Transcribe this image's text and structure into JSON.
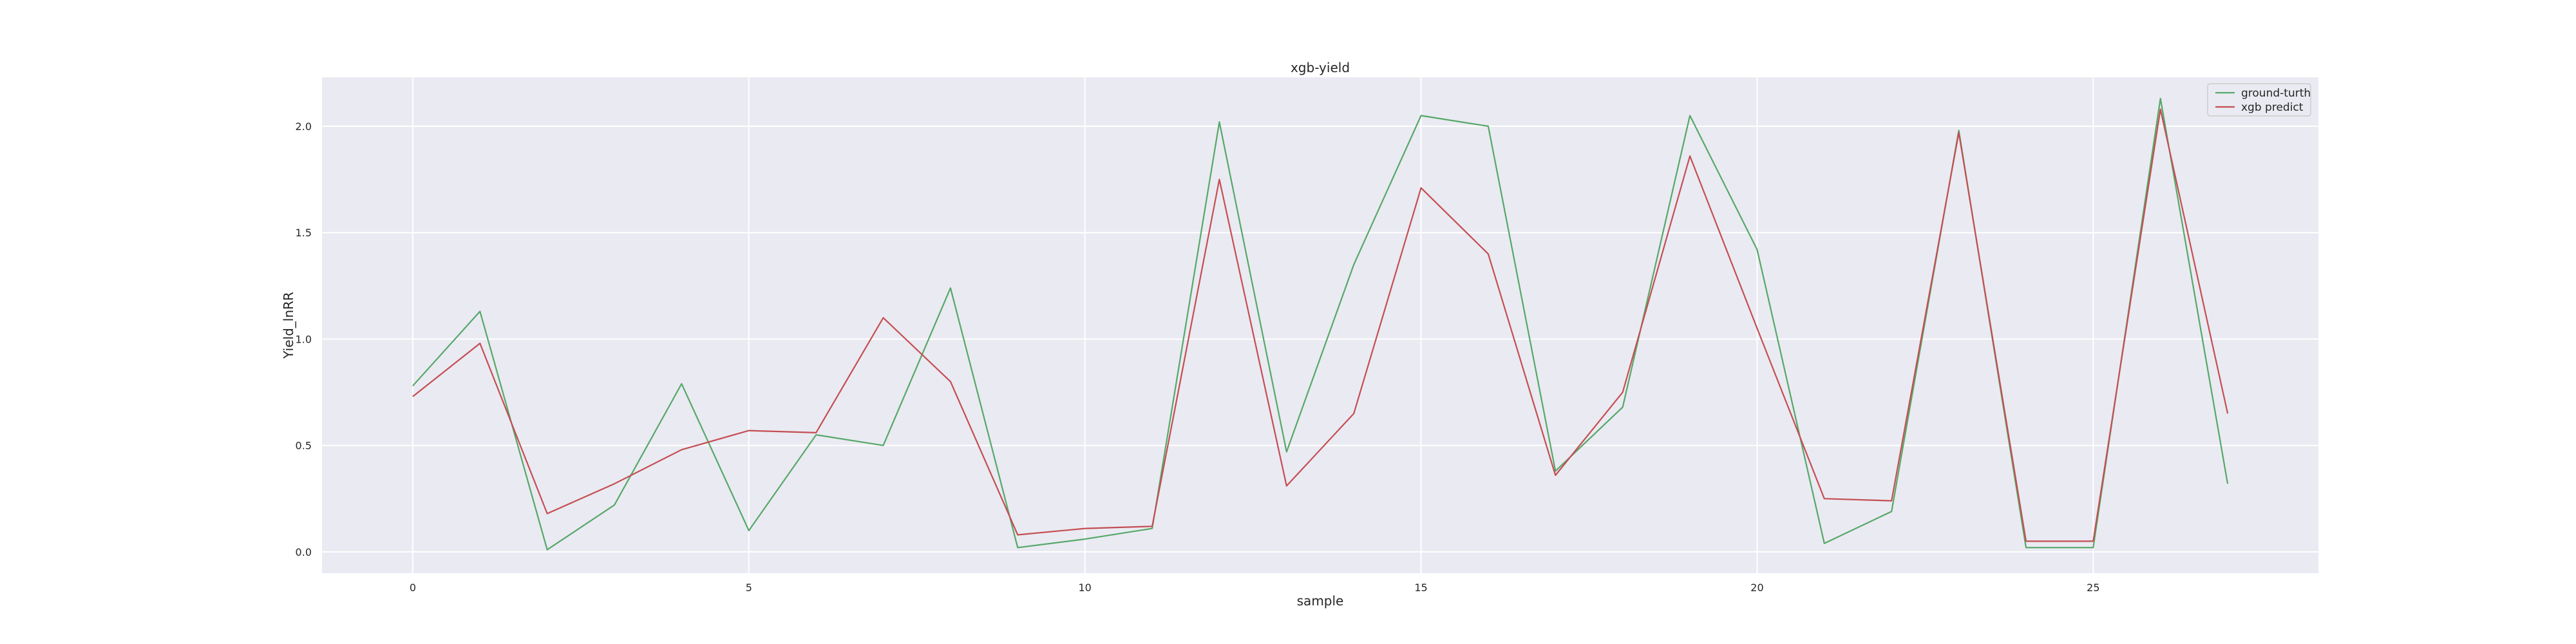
{
  "chart_data": {
    "type": "line",
    "title": "xgb-yield",
    "xlabel": "sample",
    "ylabel": "Yield_lnRR",
    "xlim": [
      -1.35,
      28.35
    ],
    "ylim": [
      -0.1,
      2.23
    ],
    "xticks": [
      0,
      5,
      10,
      15,
      20,
      25
    ],
    "yticks": [
      0.0,
      0.5,
      1.0,
      1.5,
      2.0
    ],
    "ytick_labels": [
      "0.0",
      "0.5",
      "1.0",
      "1.5",
      "2.0"
    ],
    "grid": true,
    "legend_position": "top-right",
    "x": [
      0,
      1,
      2,
      3,
      4,
      5,
      6,
      7,
      8,
      9,
      10,
      11,
      12,
      13,
      14,
      15,
      16,
      17,
      18,
      19,
      20,
      21,
      22,
      23,
      24,
      25,
      26,
      27
    ],
    "series": [
      {
        "name": "ground-turth",
        "color": "#55a868",
        "values": [
          0.78,
          1.13,
          0.01,
          0.22,
          0.79,
          0.1,
          0.55,
          0.5,
          1.24,
          0.02,
          0.06,
          0.11,
          2.02,
          0.47,
          1.35,
          2.05,
          2.0,
          0.38,
          0.68,
          2.05,
          1.42,
          0.04,
          0.19,
          1.98,
          0.02,
          0.02,
          2.13,
          0.32
        ]
      },
      {
        "name": "xgb predict",
        "color": "#c44e52",
        "values": [
          0.73,
          0.98,
          0.18,
          0.32,
          0.48,
          0.57,
          0.56,
          1.1,
          0.8,
          0.08,
          0.11,
          0.12,
          1.75,
          0.31,
          0.65,
          1.71,
          1.4,
          0.36,
          0.75,
          1.86,
          1.05,
          0.25,
          0.24,
          1.97,
          0.05,
          0.05,
          2.08,
          0.65
        ]
      }
    ]
  }
}
